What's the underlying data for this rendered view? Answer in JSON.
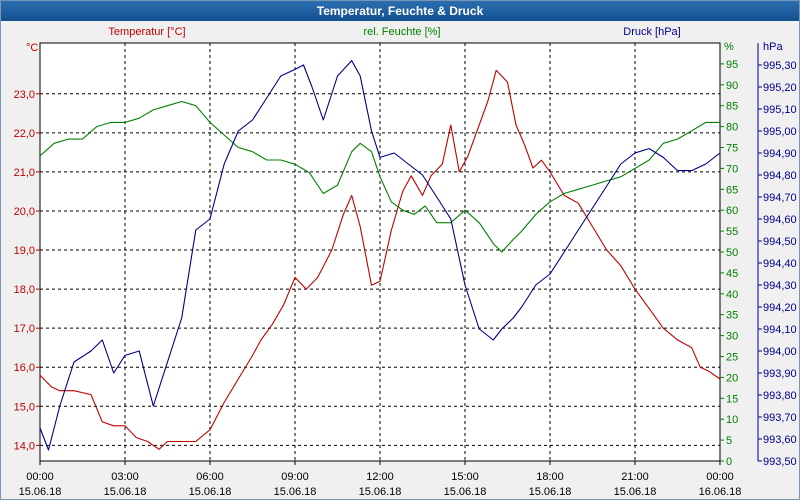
{
  "window": {
    "title": "Temperatur, Feuchte & Druck"
  },
  "chart_data": {
    "type": "line",
    "title": "Temperatur, Feuchte & Druck",
    "x_ticks": [
      {
        "time": "00:00",
        "date": "15.06.18"
      },
      {
        "time": "03:00",
        "date": "15.06.18"
      },
      {
        "time": "06:00",
        "date": "15.06.18"
      },
      {
        "time": "09:00",
        "date": "15.06.18"
      },
      {
        "time": "12:00",
        "date": "15.06.18"
      },
      {
        "time": "15:00",
        "date": "15.06.18"
      },
      {
        "time": "18:00",
        "date": "15.06.18"
      },
      {
        "time": "21:00",
        "date": "15.06.18"
      },
      {
        "time": "00:00",
        "date": "16.06.18"
      }
    ],
    "xlim": [
      0,
      24
    ],
    "axes": {
      "temperature": {
        "label": "Temperatur [°C]",
        "unit": "°C",
        "color": "#c00000",
        "range": [
          13.6,
          24.3
        ],
        "ticks": [
          "14,0",
          "15,0",
          "16,0",
          "17,0",
          "18,0",
          "19,0",
          "20,0",
          "21,0",
          "22,0",
          "23,0"
        ]
      },
      "humidity": {
        "label": "rel. Feuchte [%]",
        "unit": "%",
        "color": "#008000",
        "range": [
          0,
          100
        ],
        "ticks": [
          "0",
          "5",
          "10",
          "15",
          "20",
          "25",
          "30",
          "35",
          "40",
          "45",
          "50",
          "55",
          "60",
          "65",
          "70",
          "75",
          "80",
          "85",
          "90",
          "95"
        ]
      },
      "pressure": {
        "label": "Druck [hPa]",
        "unit": "hPa",
        "color": "#00008b",
        "range": [
          993.5,
          995.4
        ],
        "ticks": [
          "993,50",
          "993,60",
          "993,70",
          "993,80",
          "993,90",
          "994,00",
          "994,10",
          "994,20",
          "994,30",
          "994,40",
          "994,50",
          "994,60",
          "994,70",
          "994,80",
          "994,90",
          "995,00",
          "995,10",
          "995,20",
          "995,30"
        ]
      }
    },
    "series": [
      {
        "name": "Temperatur",
        "axis": "temperature",
        "x": [
          0,
          0.4,
          0.7,
          1.2,
          1.8,
          2.2,
          2.6,
          3,
          3.4,
          3.8,
          4.2,
          4.5,
          5,
          5.5,
          6,
          6.5,
          7,
          7.5,
          7.8,
          8.2,
          8.6,
          9,
          9.4,
          9.8,
          10.3,
          10.7,
          11,
          11.3,
          11.7,
          12,
          12.4,
          12.8,
          13.1,
          13.5,
          13.8,
          14.2,
          14.5,
          14.8,
          15.1,
          15.5,
          15.8,
          16.1,
          16.5,
          16.8,
          17.1,
          17.4,
          17.7,
          18,
          18.5,
          19,
          19.5,
          20,
          20.5,
          21,
          21.5,
          22,
          22.5,
          23,
          23.3,
          23.6,
          24
        ],
        "values": [
          15.8,
          15.5,
          15.4,
          15.4,
          15.3,
          14.6,
          14.5,
          14.5,
          14.2,
          14.1,
          13.9,
          14.1,
          14.1,
          14.1,
          14.4,
          15.1,
          15.7,
          16.3,
          16.7,
          17.1,
          17.6,
          18.3,
          18.0,
          18.3,
          19.0,
          19.9,
          20.4,
          19.6,
          18.1,
          18.2,
          19.5,
          20.5,
          20.9,
          20.4,
          20.9,
          21.2,
          22.2,
          21.0,
          21.4,
          22.2,
          22.8,
          23.6,
          23.3,
          22.2,
          21.7,
          21.1,
          21.3,
          21.0,
          20.4,
          20.2,
          19.6,
          19.0,
          18.6,
          18.0,
          17.5,
          17.0,
          16.7,
          16.5,
          16.0,
          15.9,
          15.7
        ]
      },
      {
        "name": "rel. Feuchte",
        "axis": "humidity",
        "x": [
          0,
          0.5,
          1,
          1.5,
          2,
          2.5,
          3,
          3.5,
          4,
          4.5,
          5,
          5.5,
          6,
          6.5,
          7,
          7.5,
          8,
          8.5,
          9,
          9.5,
          10,
          10.5,
          11,
          11.3,
          11.7,
          12,
          12.4,
          12.8,
          13.2,
          13.6,
          14,
          14.5,
          15,
          15.5,
          16,
          16.3,
          16.7,
          17,
          17.5,
          18,
          18.5,
          19,
          19.5,
          20,
          20.5,
          21,
          21.5,
          22,
          22.5,
          23,
          23.5,
          24
        ],
        "values": [
          73,
          76,
          77,
          77,
          80,
          81,
          81,
          82,
          84,
          85,
          86,
          85,
          81,
          78,
          75,
          74,
          72,
          72,
          71,
          69,
          64,
          66,
          74,
          76,
          74,
          68,
          62,
          60,
          59,
          61,
          57,
          57,
          60,
          57,
          52,
          50,
          53,
          55,
          59,
          62,
          64,
          65,
          66,
          67,
          68,
          70,
          72,
          76,
          77,
          79,
          81,
          81
        ]
      },
      {
        "name": "Druck",
        "axis": "pressure",
        "x": [
          0,
          0.3,
          0.7,
          1.2,
          1.8,
          2.2,
          2.6,
          3,
          3.5,
          4,
          4.5,
          5,
          5.5,
          6,
          6.5,
          7,
          7.5,
          8,
          8.5,
          9,
          9.3,
          9.6,
          10,
          10.5,
          11,
          11.3,
          11.7,
          12,
          12.5,
          13,
          13.5,
          14,
          14.5,
          15,
          15.5,
          16,
          16.3,
          16.7,
          17,
          17.5,
          18,
          18.5,
          19,
          19.5,
          20,
          20.5,
          21,
          21.5,
          22,
          22.5,
          23,
          23.5,
          24
        ],
        "values": [
          993.65,
          993.55,
          993.75,
          993.95,
          994.0,
          994.05,
          993.9,
          993.98,
          994.0,
          993.75,
          993.95,
          994.15,
          994.55,
          994.6,
          994.85,
          995.0,
          995.05,
          995.15,
          995.25,
          995.28,
          995.3,
          995.2,
          995.05,
          995.25,
          995.32,
          995.25,
          995.0,
          994.88,
          994.9,
          994.85,
          994.8,
          994.7,
          994.6,
          994.3,
          994.1,
          994.05,
          994.1,
          994.15,
          994.2,
          994.3,
          994.35,
          994.45,
          994.55,
          994.65,
          994.75,
          994.85,
          994.9,
          994.92,
          994.88,
          994.82,
          994.82,
          994.85,
          994.9
        ]
      }
    ]
  }
}
